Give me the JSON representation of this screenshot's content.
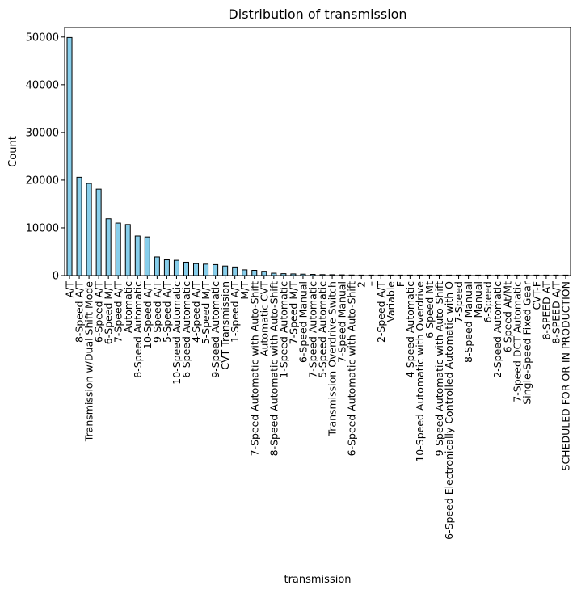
{
  "chart_data": {
    "type": "bar",
    "title": "Distribution of transmission",
    "xlabel": "transmission",
    "ylabel": "Count",
    "ylim": [
      0,
      52000
    ],
    "yticks": [
      0,
      10000,
      20000,
      30000,
      40000,
      50000
    ],
    "grid": false,
    "colors": {
      "bar_fill": "#87ceeb",
      "bar_edge": "#000000"
    },
    "categories": [
      "A/T",
      "8-Speed A/T",
      "Transmission w/Dual Shift Mode",
      "6-Speed A/T",
      "6-Speed M/T",
      "7-Speed A/T",
      "Automatic",
      "8-Speed Automatic",
      "10-Speed A/T",
      "9-Speed A/T",
      "5-Speed A/T",
      "10-Speed Automatic",
      "6-Speed Automatic",
      "4-Speed A/T",
      "5-Speed M/T",
      "9-Speed Automatic",
      "CVT Transmission",
      "1-Speed A/T",
      "M/T",
      "7-Speed Automatic with Auto-Shift",
      "Automatic CVT",
      "8-Speed Automatic with Auto-Shift",
      "1-Speed Automatic",
      "7-Speed M/T",
      "6-Speed Manual",
      "7-Speed Automatic",
      "5-Speed Automatic",
      "Transmission Overdrive Switch",
      "7-Speed Manual",
      "6-Speed Automatic with Auto-Shift",
      "2",
      "–",
      "2-Speed A/T",
      "Variable",
      "F",
      "4-Speed Automatic",
      "10-Speed Automatic with Overdrive",
      "6 Speed Mt",
      "9-Speed Automatic with Auto-Shift",
      "6-Speed Electronically Controlled Automatic with O",
      "7-Speed",
      "8-Speed Manual",
      "Manual",
      "6-Speed",
      "2-Speed Automatic",
      "6 Speed At/Mt",
      "7-Speed DCT Automatic",
      "Single-Speed Fixed Gear",
      "CVT-F",
      "8-SPEED AT",
      "8-SPEED A/T",
      "SCHEDULED FOR OR IN PRODUCTION"
    ],
    "values": [
      49900,
      20600,
      19300,
      18100,
      11900,
      11000,
      10700,
      8300,
      8100,
      3900,
      3300,
      3200,
      2800,
      2500,
      2400,
      2300,
      2000,
      1800,
      1200,
      1100,
      900,
      500,
      400,
      350,
      300,
      250,
      200,
      180,
      150,
      120,
      30,
      25,
      20,
      15,
      12,
      10,
      8,
      6,
      5,
      5,
      4,
      4,
      3,
      3,
      3,
      2,
      2,
      2,
      1,
      1,
      1,
      1
    ]
  }
}
